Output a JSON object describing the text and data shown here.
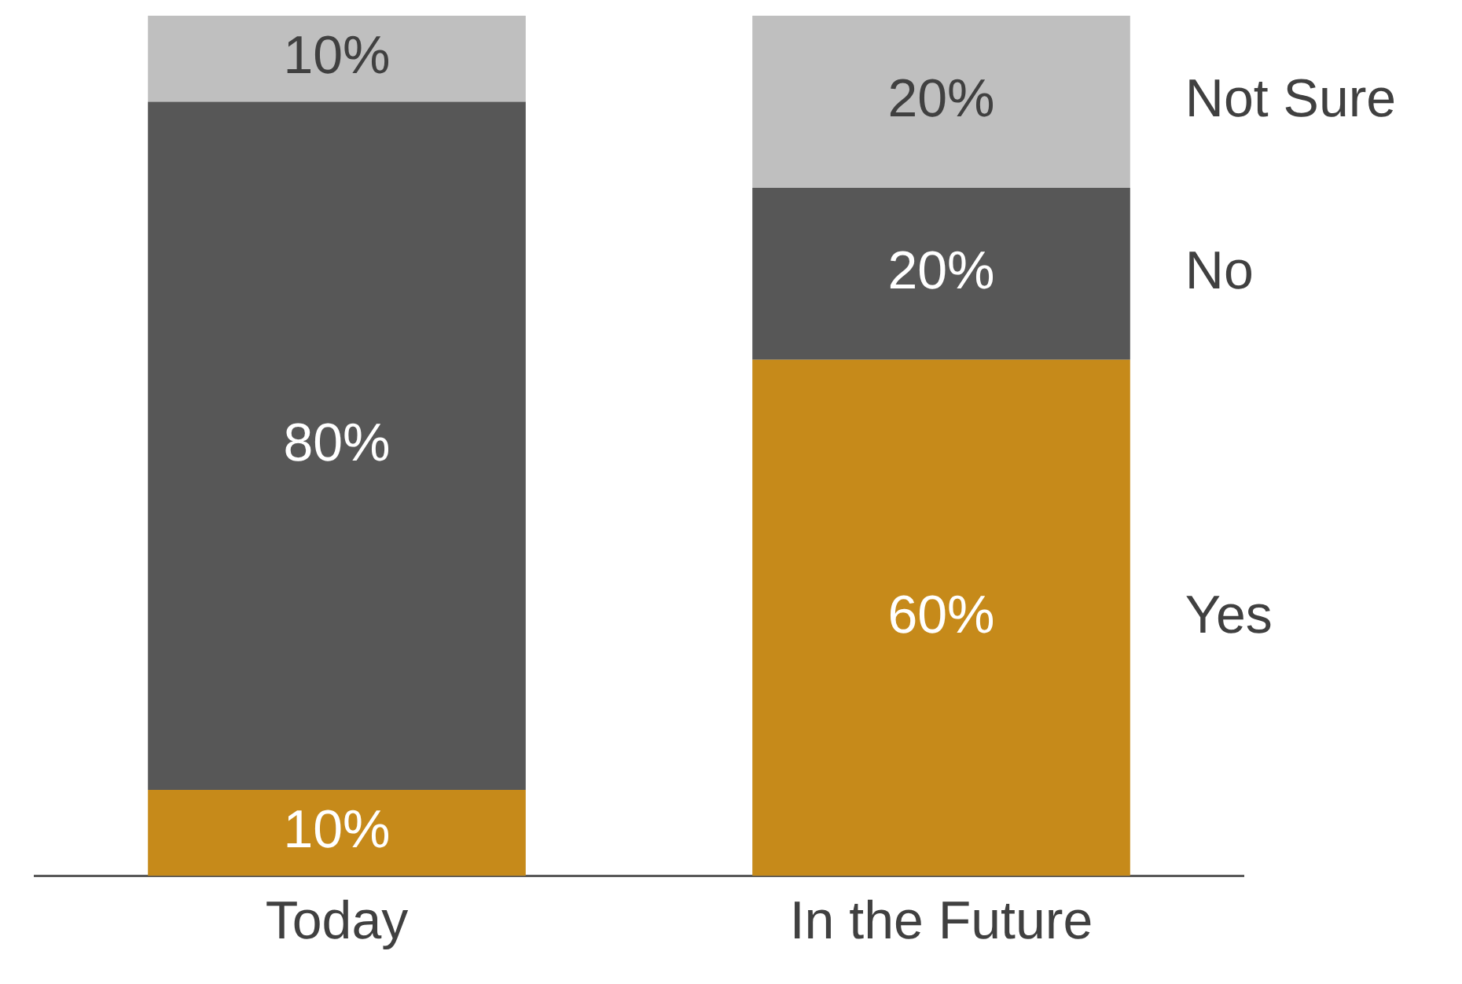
{
  "chart_data": {
    "type": "bar",
    "stacked": true,
    "categories": [
      "Today",
      "In the Future"
    ],
    "ylim": [
      0,
      100
    ],
    "legend": false,
    "series": [
      {
        "name": "Yes",
        "color": "#c68a1a",
        "values": [
          10,
          60
        ],
        "value_labels": [
          "10%",
          "60%"
        ]
      },
      {
        "name": "No",
        "color": "#575757",
        "values": [
          80,
          20
        ],
        "value_labels": [
          "80%",
          "20%"
        ]
      },
      {
        "name": "Not Sure",
        "color": "#bfbfbf",
        "values": [
          10,
          20
        ],
        "value_labels": [
          "10%",
          "20%"
        ]
      }
    ]
  }
}
